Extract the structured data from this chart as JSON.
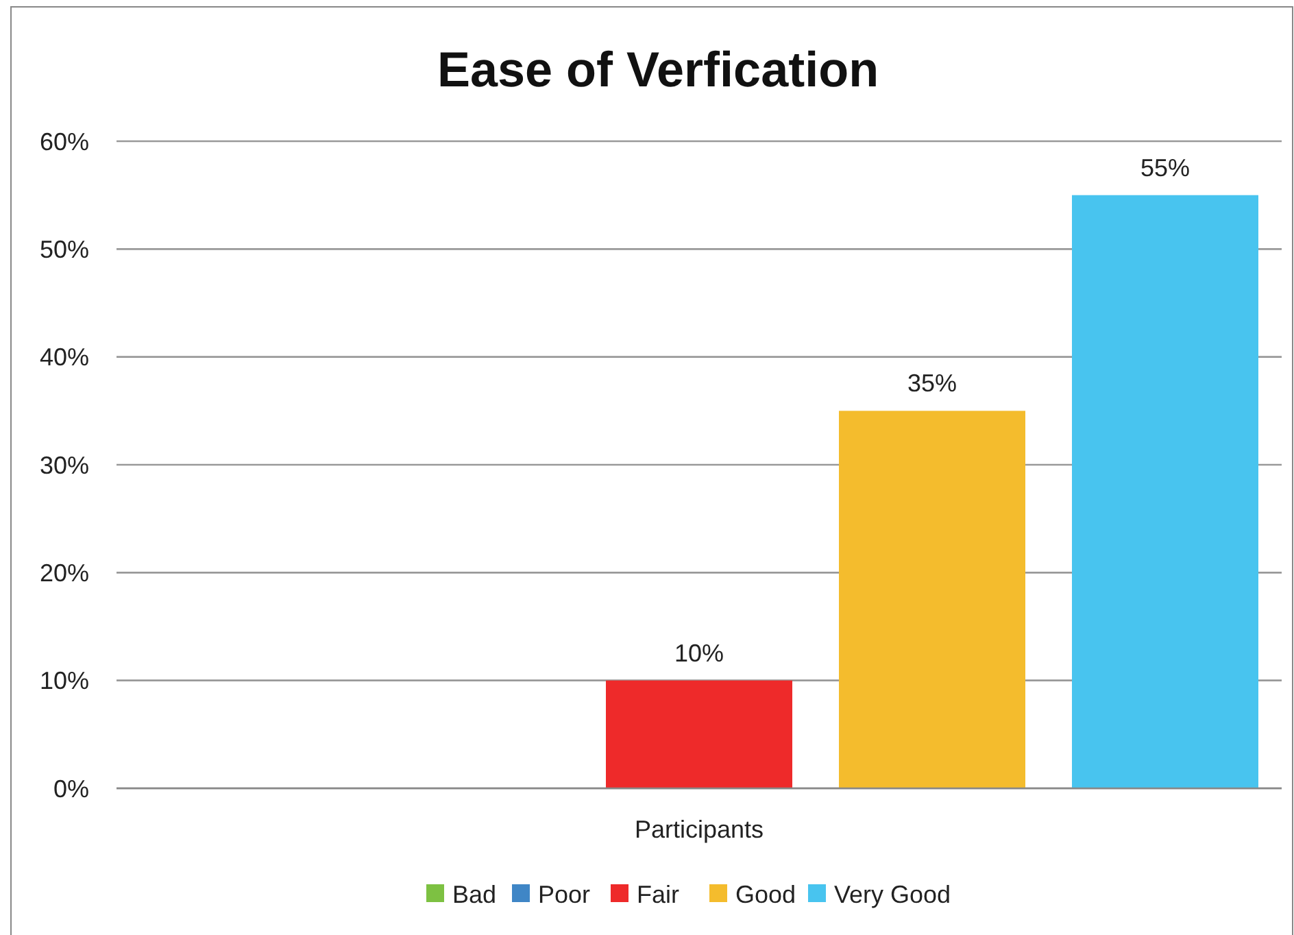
{
  "chart_data": {
    "type": "bar",
    "title": "Ease of Verfication",
    "categories": [
      "Participants"
    ],
    "series": [
      {
        "name": "Bad",
        "color": "#7dc142",
        "values": [
          0
        ],
        "value_labels": [
          null
        ]
      },
      {
        "name": "Poor",
        "color": "#3f86c6",
        "values": [
          0
        ],
        "value_labels": [
          null
        ]
      },
      {
        "name": "Fair",
        "color": "#ee2a2a",
        "values": [
          10
        ],
        "value_labels": [
          "10%"
        ]
      },
      {
        "name": "Good",
        "color": "#f4bc2d",
        "values": [
          35
        ],
        "value_labels": [
          "35%"
        ]
      },
      {
        "name": "Very Good",
        "color": "#48c4ef",
        "values": [
          55
        ],
        "value_labels": [
          "55%"
        ]
      }
    ],
    "ylim": [
      0,
      60
    ],
    "yticks": [
      {
        "value": 0,
        "label": "0%"
      },
      {
        "value": 10,
        "label": "10%"
      },
      {
        "value": 20,
        "label": "20%"
      },
      {
        "value": 30,
        "label": "30%"
      },
      {
        "value": 40,
        "label": "40%"
      },
      {
        "value": 50,
        "label": "50%"
      },
      {
        "value": 60,
        "label": "60%"
      }
    ],
    "grid": "y",
    "legend": "bottom"
  }
}
